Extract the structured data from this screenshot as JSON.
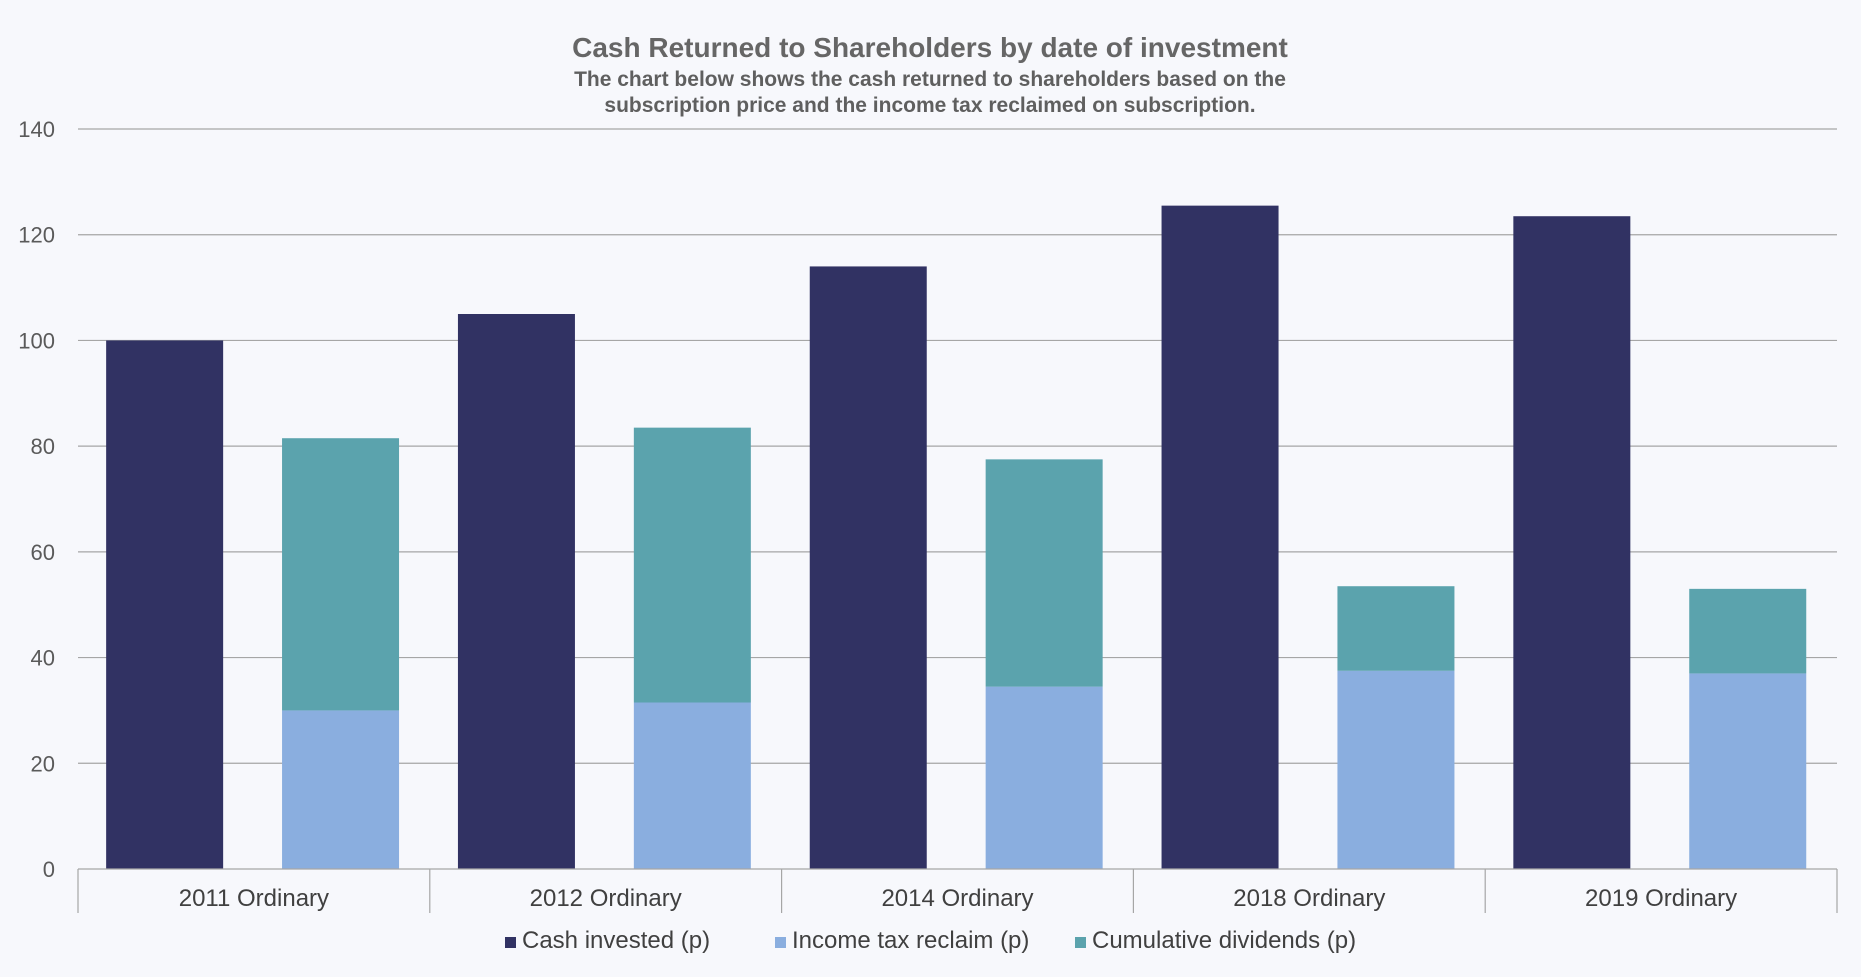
{
  "chart_data": {
    "type": "bar",
    "title": "Cash Returned to Shareholders by date of investment",
    "subtitle_lines": [
      "The chart below shows the cash returned to shareholders based on the",
      "subscription price and the income tax reclaimed on subscription."
    ],
    "categories": [
      "2011 Ordinary",
      "2012 Ordinary",
      "2014 Ordinary",
      "2018 Ordinary",
      "2019 Ordinary"
    ],
    "series": [
      {
        "name": "Cash invested (p)",
        "color": "#313263",
        "stack": "invested",
        "values": [
          100,
          105,
          114,
          125.5,
          123.5
        ]
      },
      {
        "name": "Income tax reclaim (p)",
        "color": "#8aaedf",
        "stack": "returned",
        "values": [
          30,
          31.5,
          34.5,
          37.5,
          37
        ]
      },
      {
        "name": "Cumulative dividends (p)",
        "color": "#5ba3ad",
        "stack": "returned",
        "values": [
          51.5,
          52,
          43,
          16,
          16
        ]
      }
    ],
    "ylim": [
      0,
      140
    ],
    "yticks": [
      0,
      20,
      40,
      60,
      80,
      100,
      120,
      140
    ],
    "grid": true,
    "legend_position": "bottom"
  }
}
